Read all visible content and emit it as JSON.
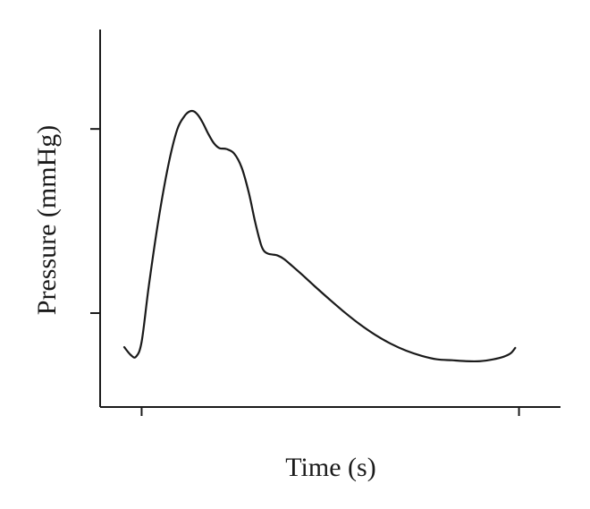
{
  "chart_data": {
    "type": "line",
    "title": "",
    "xlabel": "Time (s)",
    "ylabel": "Pressure (mmHg)",
    "x_tick_labels": [
      "",
      ""
    ],
    "y_tick_labels": [
      "",
      ""
    ],
    "grid": false,
    "legend": "none",
    "xlim": [
      -0.11,
      1.11
    ],
    "ylim": [
      -0.51,
      1.54
    ],
    "x_ticks": [
      0,
      1
    ],
    "y_ticks": [
      0,
      1
    ],
    "series": [
      {
        "color": "#1a1a1a",
        "x": [
          -0.046,
          -0.029,
          -0.015,
          0.0,
          0.019,
          0.044,
          0.07,
          0.094,
          0.114,
          0.127,
          0.139,
          0.151,
          0.163,
          0.176,
          0.191,
          0.206,
          0.225,
          0.245,
          0.265,
          0.284,
          0.301,
          0.316,
          0.325,
          0.336,
          0.347,
          0.36,
          0.377,
          0.399,
          0.425,
          0.458,
          0.497,
          0.538,
          0.579,
          0.619,
          0.66,
          0.701,
          0.742,
          0.783,
          0.823,
          0.86,
          0.897,
          0.932,
          0.959,
          0.978,
          0.99
        ],
        "y": [
          -0.185,
          -0.227,
          -0.237,
          -0.156,
          0.147,
          0.498,
          0.796,
          0.995,
          1.071,
          1.095,
          1.095,
          1.071,
          1.03,
          0.976,
          0.924,
          0.896,
          0.891,
          0.867,
          0.791,
          0.654,
          0.493,
          0.374,
          0.336,
          0.322,
          0.318,
          0.313,
          0.294,
          0.256,
          0.209,
          0.147,
          0.076,
          0.004,
          -0.062,
          -0.118,
          -0.166,
          -0.204,
          -0.232,
          -0.251,
          -0.256,
          -0.261,
          -0.261,
          -0.251,
          -0.237,
          -0.218,
          -0.189
        ]
      }
    ]
  }
}
